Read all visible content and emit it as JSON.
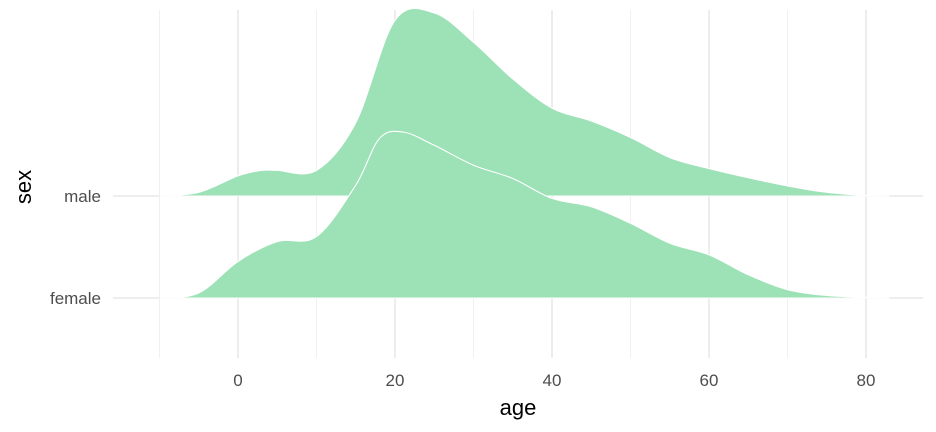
{
  "chart_data": {
    "type": "ridgeline",
    "xlabel": "age",
    "ylabel": "sex",
    "xlim": [
      -13.5,
      87
    ],
    "x_ticks": [
      0,
      20,
      40,
      60,
      80
    ],
    "x_minor_ticks": [
      -10,
      10,
      30,
      50,
      70
    ],
    "grid": true,
    "fill_color": "#9de1b7",
    "outline_color": "#ffffff",
    "categories": [
      "female",
      "male"
    ],
    "series": [
      {
        "name": "female",
        "x": [
          -10,
          -5,
          0,
          5,
          10,
          15,
          18,
          21,
          25,
          30,
          35,
          40,
          45,
          50,
          55,
          60,
          65,
          70,
          75,
          80,
          83
        ],
        "density": [
          0.0,
          0.03,
          0.22,
          0.34,
          0.37,
          0.68,
          0.96,
          1.0,
          0.92,
          0.8,
          0.72,
          0.6,
          0.55,
          0.45,
          0.33,
          0.26,
          0.14,
          0.05,
          0.015,
          0.004,
          0.0
        ]
      },
      {
        "name": "male",
        "x": [
          -10,
          -5,
          0,
          3,
          5,
          10,
          15,
          20,
          25,
          30,
          35,
          40,
          45,
          50,
          55,
          60,
          65,
          70,
          75,
          80,
          83
        ],
        "density": [
          0.0,
          0.02,
          0.11,
          0.14,
          0.14,
          0.14,
          0.4,
          0.96,
          1.0,
          0.84,
          0.64,
          0.48,
          0.41,
          0.32,
          0.21,
          0.15,
          0.1,
          0.055,
          0.02,
          0.003,
          0.0
        ]
      }
    ]
  }
}
